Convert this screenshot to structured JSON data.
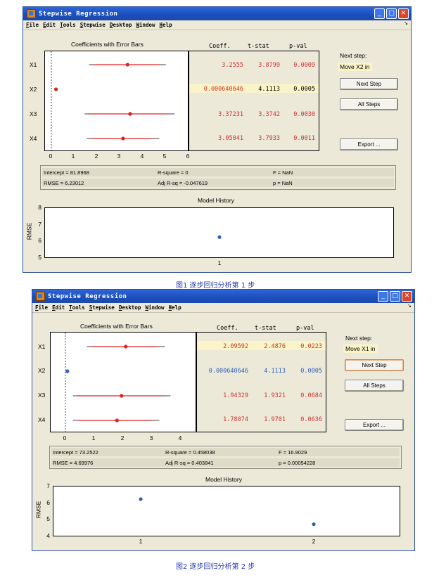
{
  "windows": [
    {
      "title": "Stepwise Regression",
      "menu": [
        "File",
        "Edit",
        "Tools",
        "Stepwise",
        "Desktop",
        "Window",
        "Help"
      ],
      "coef_plot": {
        "title": "Coefficients with Error Bars",
        "rows": [
          "X1",
          "X2",
          "X3",
          "X4"
        ],
        "xticks": [
          "0",
          "1",
          "2",
          "3",
          "4",
          "5",
          "6"
        ]
      },
      "table": {
        "headers": [
          "Coeff.",
          "t-stat",
          "p-val"
        ],
        "rows": [
          {
            "coeff": "3.2555",
            "tstat": "3.8799",
            "pval": "0.0009",
            "color": "#cc3333",
            "highlight": false
          },
          {
            "coeff": "0.000640646",
            "tstat": "4.1113",
            "pval": "0.0005",
            "color": "#cc3333",
            "highlight": true
          },
          {
            "coeff": "3.37231",
            "tstat": "3.3742",
            "pval": "0.0030",
            "color": "#cc3333",
            "highlight": false
          },
          {
            "coeff": "3.05041",
            "tstat": "3.7933",
            "pval": "0.0011",
            "color": "#cc3333",
            "highlight": false
          }
        ]
      },
      "next_step_label": "Next step:",
      "next_step_value": "Move X2 in",
      "buttons": {
        "next": "Next Step",
        "all": "All Steps",
        "export": "Export ..."
      },
      "stats": {
        "intercept": "Intercept = 81.8968",
        "rsq": "R-square = 0",
        "f": "F = NaN",
        "rmse": "RMSE = 6.23012",
        "adjrsq": "Adj R-sq = -0.047619",
        "p": "p = NaN"
      },
      "history": {
        "title": "Model History",
        "ylabel": "RMSE",
        "yticks": [
          "8",
          "7",
          "6",
          "5"
        ],
        "xticks": [
          "1"
        ]
      },
      "caption": "图1 逐步回归分析第 1 步"
    },
    {
      "title": "Stepwise Regression",
      "menu": [
        "File",
        "Edit",
        "Tools",
        "Stepwise",
        "Desktop",
        "Window",
        "Help"
      ],
      "coef_plot": {
        "title": "Coefficients with Error Bars",
        "rows": [
          "X1",
          "X2",
          "X3",
          "X4"
        ],
        "xticks": [
          "0",
          "1",
          "2",
          "3",
          "4"
        ]
      },
      "table": {
        "headers": [
          "Coeff.",
          "t-stat",
          "p-val"
        ],
        "rows": [
          {
            "coeff": "2.09592",
            "tstat": "2.4876",
            "pval": "0.0223",
            "color": "#cc3333",
            "highlight": true
          },
          {
            "coeff": "0.000640646",
            "tstat": "4.1113",
            "pval": "0.0005",
            "color": "#2f5fb8",
            "highlight": false
          },
          {
            "coeff": "1.94329",
            "tstat": "1.9321",
            "pval": "0.0684",
            "color": "#cc3333",
            "highlight": false
          },
          {
            "coeff": "1.78074",
            "tstat": "1.9701",
            "pval": "0.0636",
            "color": "#cc3333",
            "highlight": false
          }
        ]
      },
      "next_step_label": "Next step:",
      "next_step_value": "Move X1 in",
      "buttons": {
        "next": "Next Step",
        "all": "All Steps",
        "export": "Export ..."
      },
      "stats": {
        "intercept": "Intercept = 73.2522",
        "rsq": "R-square = 0.458038",
        "f": "F = 16.9029",
        "rmse": "RMSE = 4.69976",
        "adjrsq": "Adj R-sq = 0.403841",
        "p": "p = 0.00054228"
      },
      "history": {
        "title": "Model History",
        "ylabel": "RMSE",
        "yticks": [
          "7",
          "6",
          "5",
          "4"
        ],
        "xticks": [
          "1",
          "2"
        ]
      },
      "caption": "图2 逐步回归分析第 2 步"
    }
  ],
  "chart_data": [
    {
      "type": "scatter",
      "title": "Coefficients with Error Bars",
      "categories": [
        "X1",
        "X2",
        "X3",
        "X4"
      ],
      "series": [
        {
          "values": [
            3.2555,
            0.000640646,
            3.37231,
            3.05041
          ],
          "lower": [
            1.5,
            0.0,
            1.3,
            1.4
          ],
          "upper": [
            5.0,
            0.0,
            5.4,
            4.7
          ],
          "color": "#e02020"
        }
      ],
      "xlim": [
        -0.5,
        6
      ]
    },
    {
      "type": "scatter",
      "title": "Model History",
      "ylabel": "RMSE",
      "x": [
        1
      ],
      "y": [
        6.23012
      ],
      "ylim": [
        5,
        8
      ]
    },
    {
      "type": "scatter",
      "title": "Coefficients with Error Bars",
      "categories": [
        "X1",
        "X2",
        "X3",
        "X4"
      ],
      "series": [
        {
          "values": [
            2.09592,
            1.94329,
            1.78074
          ],
          "rows": [
            "X1",
            "X3",
            "X4"
          ],
          "lower": [
            0.7,
            0.2,
            0.2
          ],
          "upper": [
            3.5,
            3.7,
            3.3
          ],
          "color": "#e02020"
        },
        {
          "values": [
            0.000640646
          ],
          "rows": [
            "X2"
          ],
          "lower": [
            0.0
          ],
          "upper": [
            0.0
          ],
          "color": "#2f5fb8"
        }
      ],
      "xlim": [
        -0.6,
        4.6
      ]
    },
    {
      "type": "scatter",
      "title": "Model History",
      "ylabel": "RMSE",
      "x": [
        1,
        2
      ],
      "y": [
        6.23012,
        4.69976
      ],
      "ylim": [
        4,
        7
      ]
    }
  ]
}
